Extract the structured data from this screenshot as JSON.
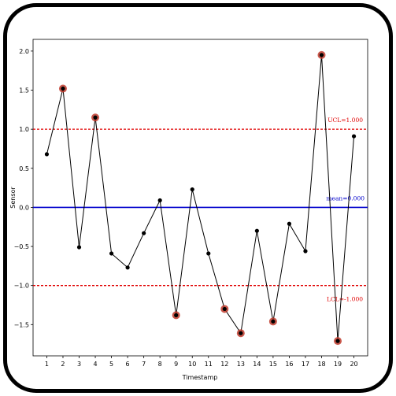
{
  "chart_data": {
    "type": "line",
    "title": "",
    "xlabel": "Timestamp",
    "ylabel": "Sensor",
    "x": [
      1,
      2,
      3,
      4,
      5,
      6,
      7,
      8,
      9,
      10,
      11,
      12,
      13,
      14,
      15,
      16,
      17,
      18,
      19,
      20
    ],
    "x_ticks": [
      "1",
      "2",
      "3",
      "4",
      "5",
      "6",
      "7",
      "8",
      "9",
      "10",
      "11",
      "12",
      "13",
      "14",
      "15",
      "16",
      "17",
      "18",
      "19",
      "20"
    ],
    "values": [
      0.68,
      1.52,
      -0.51,
      1.15,
      -0.59,
      -0.77,
      -0.33,
      0.09,
      -1.38,
      0.23,
      -0.59,
      -1.3,
      -1.61,
      -0.3,
      -1.46,
      -0.21,
      -0.56,
      1.95,
      -1.71,
      0.91
    ],
    "outliers": [
      2,
      4,
      9,
      12,
      13,
      15,
      18,
      19
    ],
    "ylim": [
      -1.9,
      2.15
    ],
    "y_ticks": [
      -1.5,
      -1.0,
      -0.5,
      0.0,
      0.5,
      1.0,
      1.5,
      2.0
    ],
    "y_tick_labels": [
      "−1.5",
      "−1.0",
      "−0.5",
      "0.0",
      "0.5",
      "1.0",
      "1.5",
      "2.0"
    ],
    "ucl": {
      "value": 1.0,
      "label": "UCL=1.000",
      "color": "#e00000"
    },
    "mean": {
      "value": 0.0,
      "label": "mean=0.000",
      "color": "#0000cc"
    },
    "lcl": {
      "value": -1.0,
      "label": "LCL=-1.000",
      "color": "#e00000"
    },
    "line_color": "#000000",
    "outlier_color": "#c0392b",
    "grid": false
  }
}
